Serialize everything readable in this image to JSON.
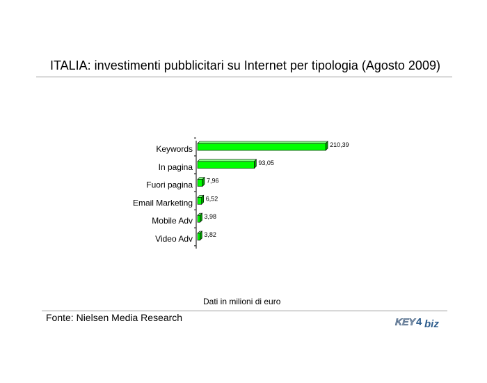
{
  "title": "ITALIA: investimenti pubblicitari su Internet per tipologia (Agosto 2009)",
  "note": "Dati in milioni di euro",
  "source": "Fonte: Nielsen Media Research",
  "logo": {
    "part1": "KEY",
    "part2": "biz",
    "mark": "4"
  },
  "colors": {
    "bar": "#00ff00",
    "bar_side": "#00a000",
    "bar_top": "#80ff80"
  },
  "chart_data": {
    "type": "bar",
    "orientation": "horizontal",
    "categories": [
      "Keywords",
      "In pagina",
      "Fuori pagina",
      "Email Marketing",
      "Mobile Adv",
      "Video Adv"
    ],
    "values": [
      210.39,
      93.05,
      7.96,
      6.52,
      3.98,
      3.82
    ],
    "value_labels": [
      "210,39",
      "93,05",
      "7,96",
      "6,52",
      "3,98",
      "3,82"
    ],
    "title": "",
    "xlabel": "",
    "ylabel": "",
    "grid": false,
    "legend": "none"
  }
}
